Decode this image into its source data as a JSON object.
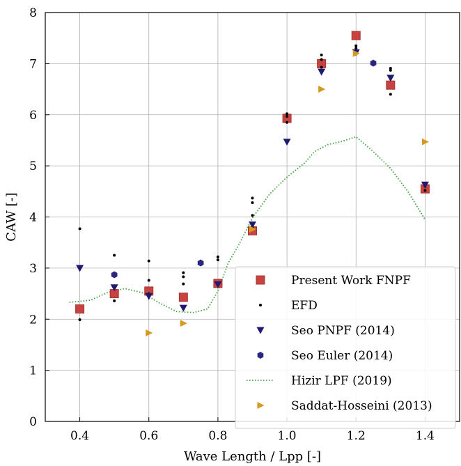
{
  "chart_data": {
    "type": "scatter",
    "xlabel": "Wave Length / Lpp [-]",
    "ylabel": "CAW [-]",
    "xlim": [
      0.3,
      1.5
    ],
    "ylim": [
      0,
      8
    ],
    "xticks": [
      0.4,
      0.6,
      0.8,
      1.0,
      1.2,
      1.4
    ],
    "xtick_labels": [
      "0.4",
      "0.6",
      "0.8",
      "1.0",
      "1.2",
      "1.4"
    ],
    "yticks": [
      0,
      1,
      2,
      3,
      4,
      5,
      6,
      7,
      8
    ],
    "ytick_labels": [
      "0",
      "1",
      "2",
      "3",
      "4",
      "5",
      "6",
      "7",
      "8"
    ],
    "grid": true,
    "legend_position": "bottom-right",
    "series": [
      {
        "name": "Present Work FNPF",
        "marker": "square",
        "color": "#c8423f",
        "x": [
          0.4,
          0.5,
          0.6,
          0.7,
          0.8,
          0.9,
          1.0,
          1.1,
          1.2,
          1.3,
          1.4
        ],
        "y": [
          2.2,
          2.5,
          2.55,
          2.43,
          2.7,
          3.73,
          5.93,
          7.0,
          7.55,
          6.58,
          4.55
        ]
      },
      {
        "name": "EFD",
        "marker": "dot",
        "color": "#000000",
        "x": [
          0.4,
          0.4,
          0.5,
          0.5,
          0.5,
          0.6,
          0.6,
          0.6,
          0.7,
          0.7,
          0.7,
          0.8,
          0.8,
          0.8,
          0.9,
          0.9,
          0.9,
          0.9,
          1.0,
          1.0,
          1.0,
          1.1,
          1.1,
          1.1,
          1.2,
          1.2,
          1.2,
          1.3,
          1.3,
          1.3,
          1.4,
          1.4
        ],
        "y": [
          3.77,
          1.99,
          3.25,
          2.9,
          2.36,
          3.14,
          2.76,
          2.5,
          2.91,
          2.83,
          2.69,
          3.22,
          3.16,
          2.71,
          4.37,
          4.28,
          4.03,
          3.8,
          6.02,
          5.97,
          5.85,
          7.17,
          7.08,
          6.93,
          7.35,
          7.3,
          7.2,
          6.91,
          6.87,
          6.4,
          4.6,
          4.52
        ]
      },
      {
        "name": "Seo PNPF (2014)",
        "marker": "triangle-down",
        "color": "#1f1a6e",
        "x": [
          0.4,
          0.5,
          0.6,
          0.7,
          0.8,
          0.9,
          1.0,
          1.1,
          1.2,
          1.3,
          1.4
        ],
        "y": [
          3.0,
          2.62,
          2.45,
          2.22,
          2.68,
          3.85,
          5.47,
          6.84,
          7.22,
          6.72,
          4.63
        ]
      },
      {
        "name": "Seo Euler (2014)",
        "marker": "hexagon",
        "color": "#2a2680",
        "x": [
          0.5,
          0.75,
          1.25
        ],
        "y": [
          2.87,
          3.1,
          7.01
        ]
      },
      {
        "name": "Hizir LPF (2019)",
        "marker": "line-dotted",
        "color": "#3f9f3f",
        "x": [
          0.37,
          0.43,
          0.48,
          0.53,
          0.58,
          0.63,
          0.68,
          0.73,
          0.77,
          0.8,
          0.83,
          0.86,
          0.9,
          0.95,
          1.0,
          1.05,
          1.08,
          1.12,
          1.16,
          1.2,
          1.25,
          1.3,
          1.35,
          1.4
        ],
        "y": [
          2.33,
          2.37,
          2.52,
          2.6,
          2.52,
          2.32,
          2.15,
          2.13,
          2.2,
          2.55,
          3.1,
          3.45,
          3.98,
          4.45,
          4.78,
          5.05,
          5.28,
          5.42,
          5.48,
          5.57,
          5.28,
          4.95,
          4.5,
          3.95
        ]
      },
      {
        "name": "Saddat-Hosseini (2013)",
        "marker": "triangle-right",
        "color": "#d69a1e",
        "x": [
          0.6,
          0.7,
          0.9,
          1.1,
          1.2,
          1.4
        ],
        "y": [
          1.73,
          1.92,
          3.76,
          6.5,
          7.2,
          5.47
        ]
      }
    ]
  }
}
